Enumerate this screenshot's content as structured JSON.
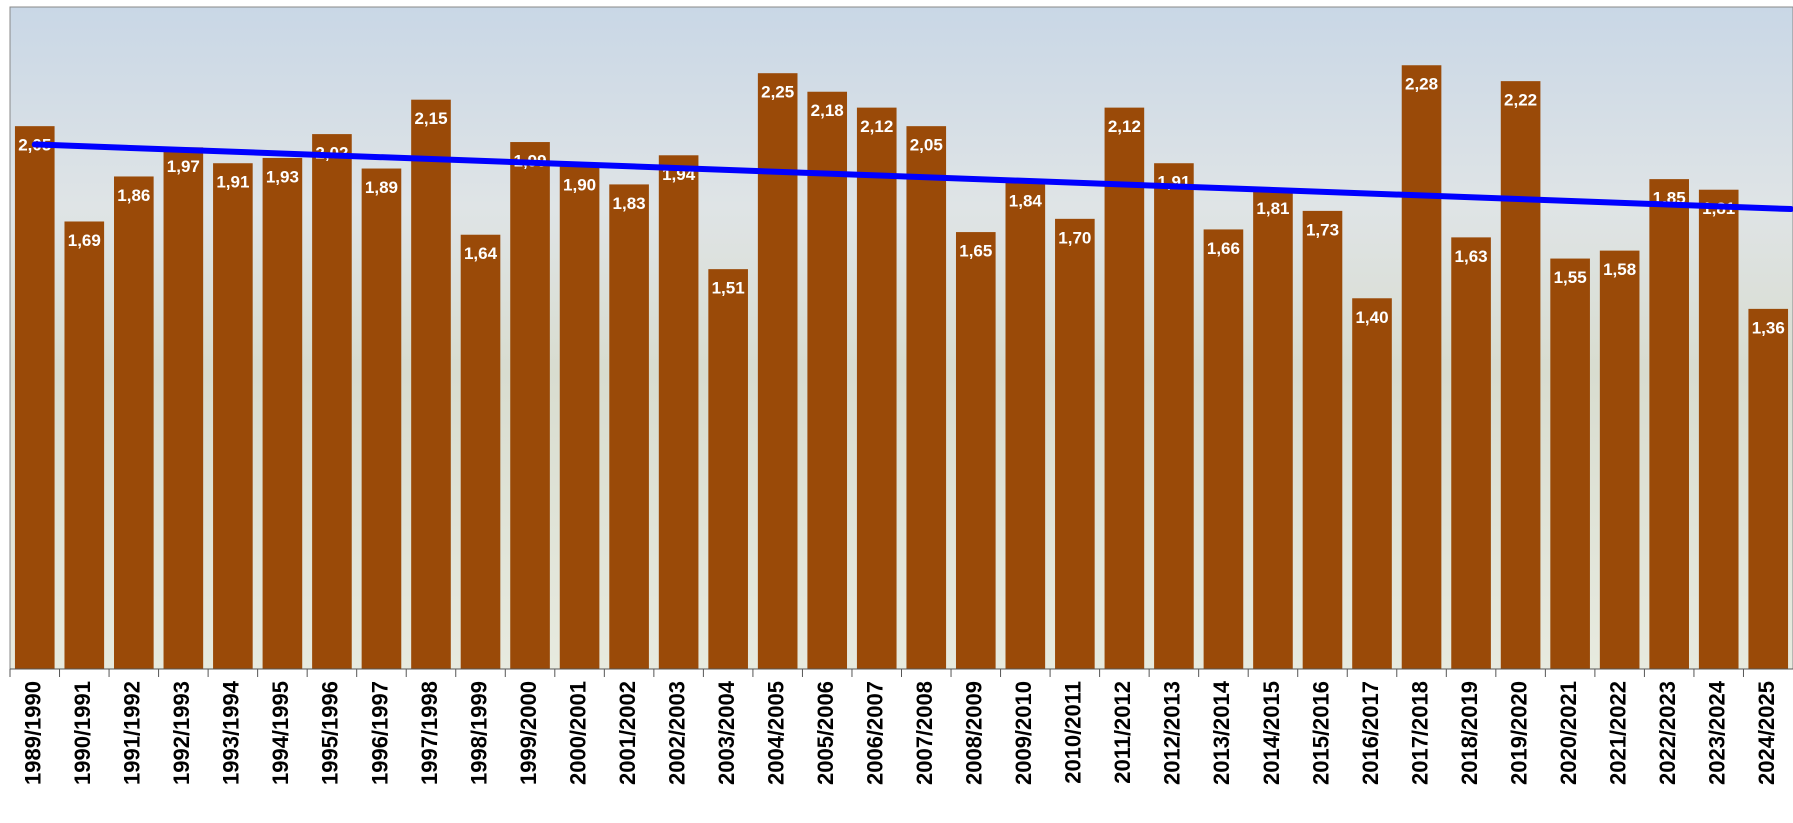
{
  "chart_data": {
    "type": "bar",
    "categories": [
      "1989/1990",
      "1990/1991",
      "1991/1992",
      "1992/1993",
      "1993/1994",
      "1994/1995",
      "1995/1996",
      "1996/1997",
      "1997/1998",
      "1998/1999",
      "1999/2000",
      "2000/2001",
      "2001/2002",
      "2002/2003",
      "2003/2004",
      "2004/2005",
      "2005/2006",
      "2006/2007",
      "2007/2008",
      "2008/2009",
      "2009/2010",
      "2010/2011",
      "2011/2012",
      "2012/2013",
      "2013/2014",
      "2014/2015",
      "2015/2016",
      "2016/2017",
      "2017/2018",
      "2018/2019",
      "2019/2020",
      "2020/2021",
      "2021/2022",
      "2022/2023",
      "2023/2024",
      "2024/2025"
    ],
    "values": [
      2.05,
      1.69,
      1.86,
      1.97,
      1.91,
      1.93,
      2.02,
      1.89,
      2.15,
      1.64,
      1.99,
      1.9,
      1.83,
      1.94,
      1.51,
      2.25,
      2.18,
      2.12,
      2.05,
      1.65,
      1.84,
      1.7,
      2.12,
      1.91,
      1.66,
      1.81,
      1.73,
      1.4,
      2.28,
      1.63,
      2.22,
      1.55,
      1.58,
      1.85,
      1.81,
      1.36
    ],
    "value_labels": [
      "2,05",
      "1,69",
      "1,86",
      "1,97",
      "1,91",
      "1,93",
      "2,02",
      "1,89",
      "2,15",
      "1,64",
      "1,99",
      "1,90",
      "1,83",
      "1,94",
      "1,51",
      "2,25",
      "2,18",
      "2,12",
      "2,05",
      "1,65",
      "1,84",
      "1,70",
      "2,12",
      "1,91",
      "1,66",
      "1,81",
      "1,73",
      "1,40",
      "2,28",
      "1,63",
      "2,22",
      "1,55",
      "1,58",
      "1,85",
      "1,81",
      "1,36"
    ],
    "color": "#9a4a08",
    "ylim": [
      0,
      2.5
    ],
    "trendline": "linear",
    "trendline_color": "#0000ff"
  }
}
